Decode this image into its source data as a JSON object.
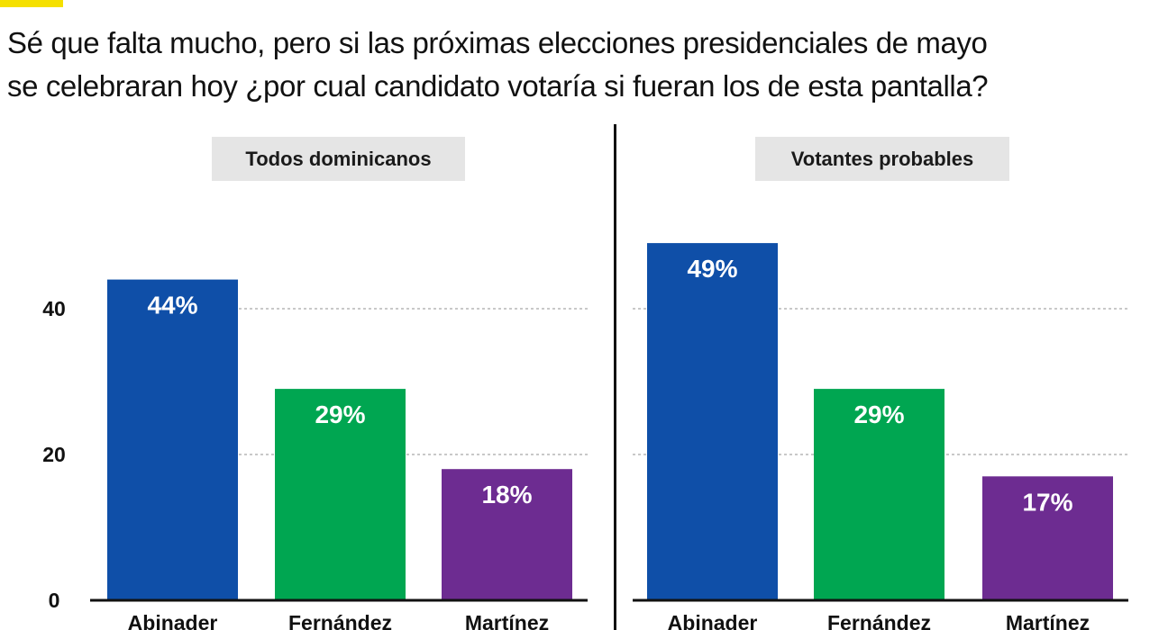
{
  "question": {
    "line1": "Sé que falta mucho, pero si las próximas elecciones presidenciales de mayo",
    "line2": "se celebraran hoy ¿por cual candidato votaría si fueran los de esta pantalla?"
  },
  "colors": {
    "Abinader": "#0f4fa8",
    "Fernández": "#00a651",
    "Martínez": "#6d2c91",
    "accent": "#f5e000"
  },
  "chart_data": [
    {
      "type": "bar",
      "title": "Todos dominicanos",
      "categories": [
        "Abinader",
        "Fernández",
        "Martínez"
      ],
      "values": [
        44,
        29,
        18
      ],
      "data_labels": [
        "44%",
        "29%",
        "18%"
      ],
      "ylim": [
        0,
        48
      ],
      "yticks": [
        0,
        20,
        40
      ],
      "grid": true
    },
    {
      "type": "bar",
      "title": "Votantes probables",
      "categories": [
        "Abinader",
        "Fernández",
        "Martínez"
      ],
      "values": [
        49,
        29,
        17
      ],
      "data_labels": [
        "49%",
        "29%",
        "17%"
      ],
      "ylim": [
        0,
        48
      ],
      "yticks": [],
      "grid": true
    }
  ]
}
